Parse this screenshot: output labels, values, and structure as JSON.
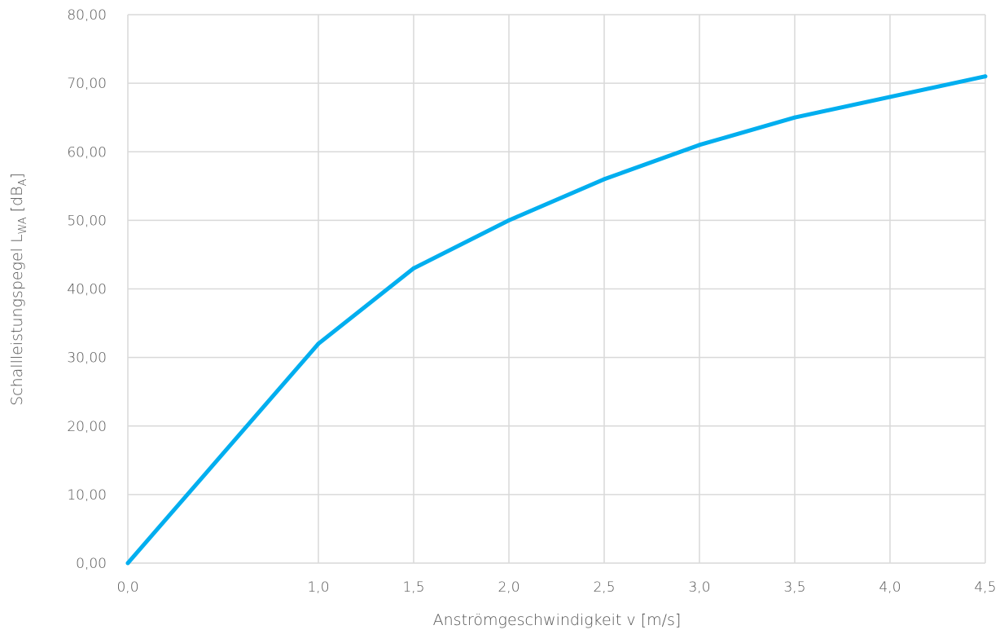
{
  "chart_data": {
    "type": "line",
    "title": "",
    "xlabel": "Anströmgeschwindigkeit v [m/s]",
    "ylabel": {
      "base": "Schallleistungspegel L",
      "sub1": "WA",
      "mid": " [dB",
      "sub2": "A",
      "end": "]"
    },
    "x": [
      0.0,
      1.0,
      1.5,
      2.0,
      2.5,
      3.0,
      3.5,
      4.0,
      4.5
    ],
    "x_tick_labels": [
      "0,0",
      "1,0",
      "1,5",
      "2,0",
      "2,5",
      "3,0",
      "3,5",
      "4,0",
      "4,5"
    ],
    "y_ticks": [
      0,
      10,
      20,
      30,
      40,
      50,
      60,
      70,
      80
    ],
    "y_tick_labels": [
      "0,00",
      "10,00",
      "20,00",
      "30,00",
      "40,00",
      "50,00",
      "60,00",
      "70,00",
      "80,00"
    ],
    "ylim": [
      0,
      80
    ],
    "grid": true,
    "legend": "none",
    "series": [
      {
        "color": "#00aeef",
        "values": [
          0,
          32,
          43,
          50,
          56,
          61,
          65,
          68,
          71
        ]
      }
    ]
  },
  "colors": {
    "grid": "#d9d9d9",
    "text": "#555555",
    "series": "#00aeef"
  }
}
